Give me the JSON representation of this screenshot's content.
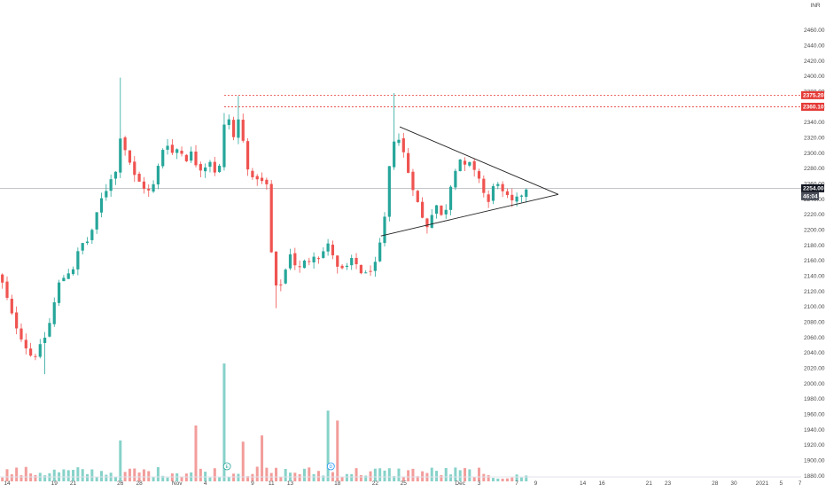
{
  "currency": "INR",
  "colors": {
    "up": "#26a69a",
    "down": "#ef5350",
    "price_line": "#b0b3b8",
    "resistance": "#e53935",
    "trendline": "#222222",
    "axis_text": "#4a4a4a",
    "last_badge": "#131722"
  },
  "markers": [
    "earnings-icon",
    "dividend-icon"
  ],
  "chart_data": {
    "type": "candlestick",
    "currency": "INR",
    "y_axis": {
      "range": [
        1876,
        2476
      ],
      "ticks": [
        "2460.00",
        "2440.00",
        "2420.00",
        "2400.00",
        "2380.00",
        "2360.00",
        "2340.00",
        "2320.00",
        "2300.00",
        "2280.00",
        "2260.00",
        "2240.00",
        "2220.00",
        "2200.00",
        "2180.00",
        "2160.00",
        "2140.00",
        "2120.00",
        "2100.00",
        "2080.00",
        "2060.00",
        "2040.00",
        "2020.00",
        "2000.00",
        "1980.00",
        "1960.00",
        "1940.00",
        "1920.00",
        "1900.00",
        "1880.00"
      ]
    },
    "x_axis": {
      "labels": [
        {
          "label": "14",
          "d": 0
        },
        {
          "label": "19",
          "d": 5
        },
        {
          "label": "21",
          "d": 7
        },
        {
          "label": "26",
          "d": 12
        },
        {
          "label": "28",
          "d": 14
        },
        {
          "label": "Nov",
          "d": 18
        },
        {
          "label": "4",
          "d": 21
        },
        {
          "label": "9",
          "d": 26
        },
        {
          "label": "11",
          "d": 28
        },
        {
          "label": "13",
          "d": 30
        },
        {
          "label": "18",
          "d": 35
        },
        {
          "label": "22",
          "d": 39
        },
        {
          "label": "25",
          "d": 42
        },
        {
          "label": "Dec",
          "d": 48
        },
        {
          "label": "3",
          "d": 50
        },
        {
          "label": "7",
          "d": 54
        },
        {
          "label": "9",
          "d": 56
        },
        {
          "label": "14",
          "d": 61
        },
        {
          "label": "16",
          "d": 63
        },
        {
          "label": "21",
          "d": 68
        },
        {
          "label": "23",
          "d": 70
        },
        {
          "label": "28",
          "d": 75
        },
        {
          "label": "30",
          "d": 77
        },
        {
          "label": "2021",
          "d": 80
        },
        {
          "label": "5",
          "d": 82
        },
        {
          "label": "7",
          "d": 84
        }
      ]
    },
    "price_levels": [
      {
        "value": 2375.2,
        "label": "2375.20"
      },
      {
        "value": 2360.1,
        "label": "2360.10"
      }
    ],
    "last_price": {
      "value": 2254.0,
      "label": "2254.00",
      "countdown": "46:04"
    },
    "triangle": {
      "upper": [
        {
          "d": 41.6,
          "price": 2334
        },
        {
          "d": 58.4,
          "price": 2246
        }
      ],
      "lower": [
        {
          "d": 39.6,
          "price": 2192
        },
        {
          "d": 58.4,
          "price": 2246
        }
      ]
    },
    "volume_peaks": [
      {
        "d": 12,
        "height": 0.33,
        "up": true
      },
      {
        "d": 25,
        "height": 0.32,
        "up": false
      },
      {
        "d": 27,
        "height": 0.37,
        "up": false
      },
      {
        "d": 20,
        "height": 0.45,
        "up": false
      },
      {
        "d": 23.2,
        "height": 0.95,
        "up": true
      },
      {
        "d": 34,
        "height": 0.57,
        "up": false
      },
      {
        "d": 35,
        "height": 0.49,
        "up": true
      }
    ],
    "price_path": [
      [
        -1.0,
        2140
      ],
      [
        -0.5,
        2130
      ],
      [
        0,
        2110
      ],
      [
        0.6,
        2085
      ],
      [
        1.2,
        2068
      ],
      [
        1.8,
        2052
      ],
      [
        2.3,
        2040
      ],
      [
        2.8,
        2032
      ],
      [
        3.3,
        2045
      ],
      [
        3.8,
        2052
      ],
      [
        4.2,
        2068
      ],
      [
        4.6,
        2082
      ],
      [
        5.0,
        2105
      ],
      [
        5.5,
        2130
      ],
      [
        6.0,
        2138
      ],
      [
        6.5,
        2145
      ],
      [
        7.0,
        2150
      ],
      [
        7.5,
        2170
      ],
      [
        8.0,
        2182
      ],
      [
        8.5,
        2185
      ],
      [
        9.0,
        2200
      ],
      [
        9.5,
        2220
      ],
      [
        10.0,
        2240
      ],
      [
        10.5,
        2252
      ],
      [
        11.0,
        2268
      ],
      [
        11.5,
        2275
      ],
      [
        11.8,
        2305
      ],
      [
        12.1,
        2330
      ],
      [
        12.5,
        2305
      ],
      [
        13.0,
        2288
      ],
      [
        13.5,
        2270
      ],
      [
        14.0,
        2262
      ],
      [
        14.5,
        2255
      ],
      [
        15.0,
        2250
      ],
      [
        15.5,
        2258
      ],
      [
        16.0,
        2282
      ],
      [
        16.5,
        2305
      ],
      [
        17.0,
        2312
      ],
      [
        17.5,
        2300
      ],
      [
        18.0,
        2305
      ],
      [
        18.5,
        2300
      ],
      [
        19.0,
        2292
      ],
      [
        19.5,
        2300
      ],
      [
        20.0,
        2286
      ],
      [
        20.5,
        2280
      ],
      [
        21.0,
        2283
      ],
      [
        21.5,
        2290
      ],
      [
        22.0,
        2276
      ],
      [
        22.5,
        2282
      ],
      [
        23.0,
        2335
      ],
      [
        23.3,
        2352
      ],
      [
        23.6,
        2340
      ],
      [
        24.0,
        2320
      ],
      [
        24.4,
        2348
      ],
      [
        24.8,
        2328
      ],
      [
        25.2,
        2302
      ],
      [
        25.6,
        2275
      ],
      [
        26.0,
        2265
      ],
      [
        26.5,
        2268
      ],
      [
        27.0,
        2262
      ],
      [
        27.5,
        2258
      ],
      [
        28.0,
        2170
      ],
      [
        28.3,
        2130
      ],
      [
        28.6,
        2122
      ],
      [
        29.0,
        2130
      ],
      [
        29.5,
        2148
      ],
      [
        30.0,
        2170
      ],
      [
        30.5,
        2155
      ],
      [
        31.0,
        2150
      ],
      [
        31.5,
        2158
      ],
      [
        32.0,
        2160
      ],
      [
        32.5,
        2168
      ],
      [
        33.0,
        2165
      ],
      [
        33.5,
        2172
      ],
      [
        34.0,
        2180
      ],
      [
        34.5,
        2168
      ],
      [
        35.0,
        2150
      ],
      [
        35.5,
        2148
      ],
      [
        36.0,
        2152
      ],
      [
        36.5,
        2160
      ],
      [
        37.0,
        2155
      ],
      [
        37.5,
        2145
      ],
      [
        38.0,
        2142
      ],
      [
        38.5,
        2148
      ],
      [
        39.0,
        2155
      ],
      [
        39.5,
        2180
      ],
      [
        40.0,
        2215
      ],
      [
        40.4,
        2270
      ],
      [
        40.8,
        2310
      ],
      [
        41.2,
        2325
      ],
      [
        41.6,
        2315
      ],
      [
        42.0,
        2300
      ],
      [
        42.5,
        2275
      ],
      [
        43.0,
        2255
      ],
      [
        43.5,
        2235
      ],
      [
        44.0,
        2215
      ],
      [
        44.5,
        2205
      ],
      [
        45.0,
        2222
      ],
      [
        45.5,
        2232
      ],
      [
        46.0,
        2218
      ],
      [
        46.5,
        2228
      ],
      [
        47.0,
        2258
      ],
      [
        47.5,
        2280
      ],
      [
        48.0,
        2292
      ],
      [
        48.5,
        2282
      ],
      [
        49.0,
        2286
      ],
      [
        49.5,
        2275
      ],
      [
        50.0,
        2268
      ],
      [
        50.5,
        2248
      ],
      [
        51.0,
        2236
      ],
      [
        51.5,
        2255
      ],
      [
        52.0,
        2262
      ],
      [
        52.5,
        2248
      ],
      [
        53.0,
        2242
      ],
      [
        53.5,
        2236
      ],
      [
        54.0,
        2240
      ],
      [
        54.5,
        2246
      ],
      [
        54.8,
        2252
      ],
      [
        55.0,
        2254
      ]
    ]
  }
}
